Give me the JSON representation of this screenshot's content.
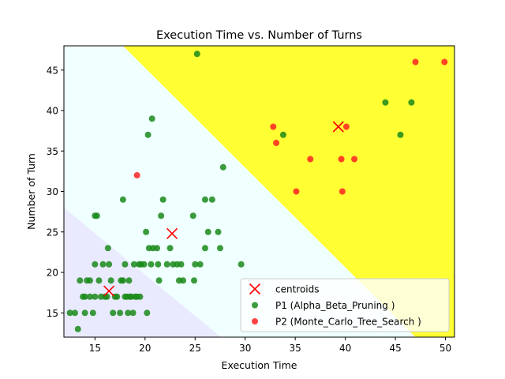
{
  "chart_data": {
    "type": "scatter",
    "title": "Execution Time vs. Number of Turns",
    "xlabel": "Execution Time",
    "ylabel": "Number of Turn",
    "xlim": [
      11.9,
      50.9
    ],
    "ylim": [
      12.0,
      48.0
    ],
    "x_ticks": [
      15,
      20,
      25,
      30,
      35,
      40,
      45,
      50
    ],
    "y_ticks": [
      15,
      20,
      25,
      30,
      35,
      40,
      45
    ],
    "grid": false,
    "legend_position": "lower-right",
    "regions": [
      {
        "color": "#eaeaff",
        "polygon": [
          [
            11.9,
            12.0
          ],
          [
            11.9,
            28.0
          ],
          [
            27.6,
            12.0
          ]
        ]
      },
      {
        "color": "#f0ffff",
        "polygon": [
          [
            11.9,
            28.0
          ],
          [
            11.9,
            48.0
          ],
          [
            17.8,
            48.0
          ],
          [
            47.0,
            12.0
          ],
          [
            27.6,
            12.0
          ]
        ]
      },
      {
        "color": "#ffff33",
        "polygon": [
          [
            17.8,
            48.0
          ],
          [
            50.9,
            48.0
          ],
          [
            50.9,
            12.0
          ],
          [
            47.0,
            12.0
          ]
        ]
      }
    ],
    "series": [
      {
        "name": "centroids",
        "marker": "x",
        "color": "#ff0000",
        "points": [
          [
            16.4,
            17.7
          ],
          [
            22.7,
            24.8
          ],
          [
            39.3,
            38.0
          ]
        ]
      },
      {
        "name": "P1 (Alpha_Beta_Pruning )",
        "marker": "o",
        "color": "#1a8a1a",
        "points": [
          [
            12.5,
            15
          ],
          [
            13.0,
            15
          ],
          [
            13.3,
            13
          ],
          [
            13.5,
            19
          ],
          [
            13.8,
            17
          ],
          [
            14.0,
            15
          ],
          [
            14.0,
            17
          ],
          [
            14.2,
            19
          ],
          [
            14.5,
            19
          ],
          [
            14.5,
            17
          ],
          [
            14.8,
            15
          ],
          [
            15.0,
            17
          ],
          [
            15.0,
            21
          ],
          [
            15.0,
            27
          ],
          [
            15.2,
            27
          ],
          [
            15.4,
            19
          ],
          [
            15.6,
            17
          ],
          [
            15.8,
            21
          ],
          [
            16.0,
            17
          ],
          [
            16.2,
            17
          ],
          [
            16.3,
            23
          ],
          [
            16.4,
            21
          ],
          [
            16.6,
            19
          ],
          [
            16.8,
            15
          ],
          [
            17.0,
            17
          ],
          [
            17.2,
            17
          ],
          [
            17.5,
            15
          ],
          [
            17.6,
            19
          ],
          [
            17.8,
            19
          ],
          [
            17.8,
            29
          ],
          [
            18.0,
            17
          ],
          [
            18.0,
            21
          ],
          [
            18.2,
            17
          ],
          [
            18.3,
            15
          ],
          [
            18.4,
            19
          ],
          [
            18.5,
            17
          ],
          [
            18.6,
            17
          ],
          [
            18.8,
            15
          ],
          [
            18.9,
            21
          ],
          [
            19.0,
            17
          ],
          [
            19.2,
            17
          ],
          [
            19.4,
            21
          ],
          [
            19.5,
            17
          ],
          [
            19.6,
            21
          ],
          [
            19.9,
            21
          ],
          [
            20.1,
            25
          ],
          [
            20.2,
            15
          ],
          [
            20.3,
            37
          ],
          [
            20.4,
            23
          ],
          [
            20.6,
            21
          ],
          [
            20.7,
            39
          ],
          [
            20.8,
            23
          ],
          [
            21.2,
            23
          ],
          [
            21.3,
            21
          ],
          [
            21.4,
            19
          ],
          [
            21.6,
            27
          ],
          [
            21.8,
            29
          ],
          [
            22.2,
            21
          ],
          [
            22.5,
            23
          ],
          [
            22.8,
            21
          ],
          [
            23.2,
            21
          ],
          [
            23.4,
            19
          ],
          [
            23.6,
            21
          ],
          [
            23.8,
            19
          ],
          [
            24.8,
            27
          ],
          [
            24.9,
            19
          ],
          [
            25.0,
            21
          ],
          [
            25.2,
            47
          ],
          [
            25.5,
            21
          ],
          [
            26.0,
            29
          ],
          [
            26.0,
            23
          ],
          [
            26.3,
            25
          ],
          [
            26.7,
            29
          ],
          [
            27.3,
            25
          ],
          [
            27.5,
            23
          ],
          [
            27.8,
            33
          ],
          [
            29.6,
            21
          ],
          [
            33.8,
            37
          ],
          [
            44.0,
            41
          ],
          [
            45.5,
            37
          ],
          [
            46.6,
            41
          ]
        ]
      },
      {
        "name": "P2 (Monte_Carlo_Tree_Search )",
        "marker": "o",
        "color": "#ff2222",
        "points": [
          [
            19.2,
            32
          ],
          [
            32.8,
            38
          ],
          [
            33.1,
            36
          ],
          [
            35.1,
            30
          ],
          [
            36.5,
            34
          ],
          [
            39.6,
            34
          ],
          [
            39.7,
            30
          ],
          [
            40.1,
            38
          ],
          [
            40.9,
            34
          ],
          [
            47.0,
            46
          ],
          [
            49.9,
            46
          ]
        ]
      }
    ]
  }
}
